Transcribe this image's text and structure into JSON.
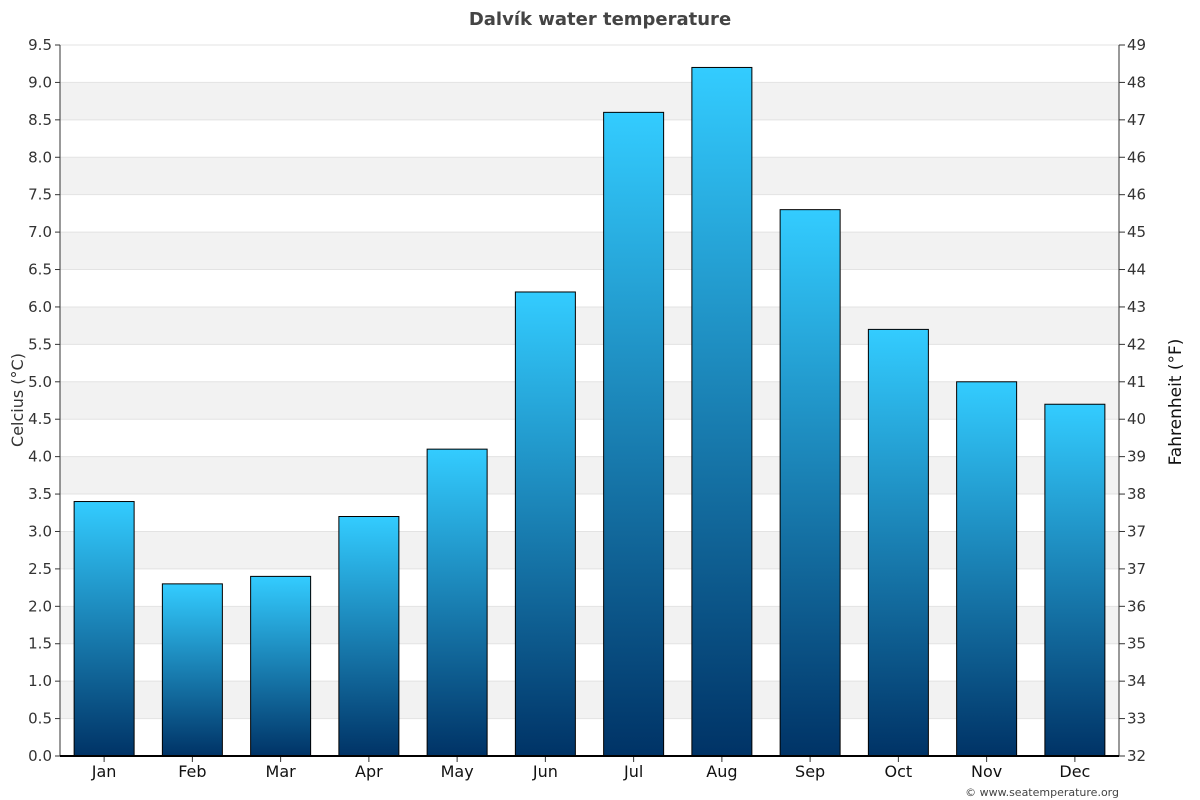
{
  "chart_data": {
    "type": "bar",
    "title": "Dalvík water temperature",
    "categories": [
      "Jan",
      "Feb",
      "Mar",
      "Apr",
      "May",
      "Jun",
      "Jul",
      "Aug",
      "Sep",
      "Oct",
      "Nov",
      "Dec"
    ],
    "series": [
      {
        "values": [
          3.4,
          2.3,
          2.4,
          3.2,
          4.1,
          6.2,
          8.6,
          9.2,
          7.3,
          5.7,
          5.0,
          4.7
        ]
      }
    ],
    "ylabel_left": "Celcius (°C)",
    "ylabel_right": "Fahrenheit (°F)",
    "ylim": [
      0,
      9.5
    ],
    "y_ticks_left": [
      "0.0",
      "0.5",
      "1.0",
      "1.5",
      "2.0",
      "2.5",
      "3.0",
      "3.5",
      "4.0",
      "4.5",
      "5.0",
      "5.5",
      "6.0",
      "6.5",
      "7.0",
      "7.5",
      "8.0",
      "8.5",
      "9.0",
      "9.5"
    ],
    "y_ticks_right": [
      "32",
      "33",
      "34",
      "35",
      "36",
      "37",
      "37",
      "38",
      "39",
      "40",
      "41",
      "42",
      "43",
      "44",
      "45",
      "46",
      "46",
      "47",
      "48",
      "49"
    ],
    "grid": true,
    "bar_gradient": {
      "top": "#33ccff",
      "bottom": "#003366"
    },
    "band_color": "#f2f2f2",
    "credit": "© www.seatemperature.org"
  }
}
